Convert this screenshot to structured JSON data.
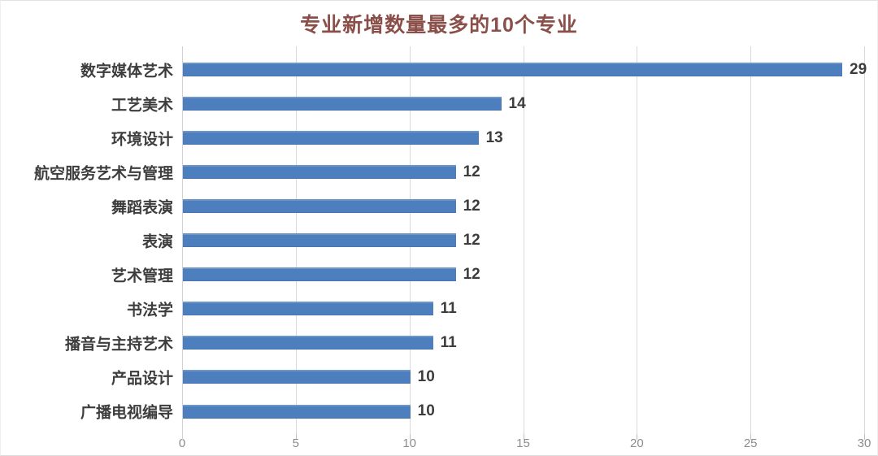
{
  "chart_data": {
    "type": "bar",
    "orientation": "horizontal",
    "title": "专业新增数量最多的10个专业",
    "categories": [
      "数字媒体艺术",
      "工艺美术",
      "环境设计",
      "航空服务艺术与管理",
      "舞蹈表演",
      "表演",
      "艺术管理",
      "书法学",
      "播音与主持艺术",
      "产品设计",
      "广播电视编导"
    ],
    "values": [
      29,
      14,
      13,
      12,
      12,
      12,
      12,
      11,
      11,
      10,
      10
    ],
    "xticks": [
      0,
      5,
      10,
      15,
      20,
      25,
      30
    ],
    "xlim": [
      0,
      30
    ],
    "grid": "vertical-gridlines-on",
    "legend": "none",
    "data_labels": "end-of-bar",
    "colors": {
      "bar": "#4d7ebd",
      "title": "#8a4f48",
      "category_label": "#3d3d3d",
      "value_label": "#3d3d3d",
      "tick_label": "#8c8c8c",
      "gridline": "#d9d9d9",
      "background": "#ffffff"
    }
  }
}
